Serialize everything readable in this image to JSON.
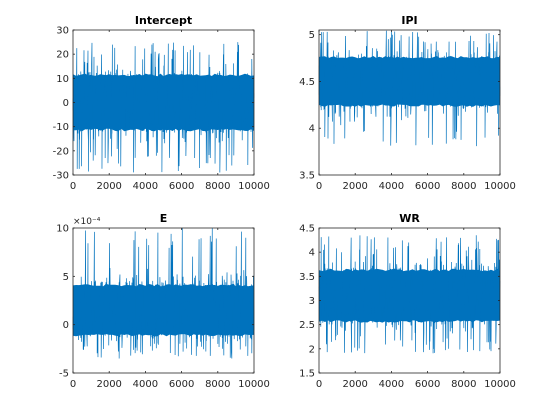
{
  "chart_data": [
    {
      "type": "line",
      "title": "Intercept",
      "xlabel": "",
      "ylabel": "",
      "xlim": [
        0,
        10000
      ],
      "ylim": [
        -30,
        30
      ],
      "xticks": [
        0,
        2000,
        4000,
        6000,
        8000,
        10000
      ],
      "xtick_labels": [
        "0",
        "2000",
        "4000",
        "6000",
        "8000",
        "10000"
      ],
      "yticks": [
        -30,
        -20,
        -10,
        0,
        10,
        20,
        30
      ],
      "ytick_labels": [
        "-30",
        "-20",
        "-10",
        "0",
        "10",
        "20",
        "30"
      ],
      "exponent_label": "",
      "color": "#0072BD",
      "series": [
        {
          "mean": 0,
          "sd": 7.5,
          "min": -29,
          "max": 25,
          "n_samples": 10000
        }
      ]
    },
    {
      "type": "line",
      "title": "IPI",
      "xlabel": "",
      "ylabel": "",
      "xlim": [
        0,
        10000
      ],
      "ylim": [
        3.5,
        5.05
      ],
      "xticks": [
        0,
        2000,
        4000,
        6000,
        8000,
        10000
      ],
      "xtick_labels": [
        "0",
        "2000",
        "4000",
        "6000",
        "8000",
        "10000"
      ],
      "yticks": [
        3.5,
        4,
        4.5,
        5
      ],
      "ytick_labels": [
        "3.5",
        "4",
        "4.5",
        "5"
      ],
      "exponent_label": "",
      "color": "#0072BD",
      "series": [
        {
          "mean": 4.5,
          "sd": 0.17,
          "min": 3.8,
          "max": 5.05,
          "n_samples": 10000
        }
      ]
    },
    {
      "type": "line",
      "title": "E",
      "xlabel": "",
      "ylabel": "",
      "xlim": [
        0,
        10000
      ],
      "ylim": [
        -5,
        10
      ],
      "xticks": [
        0,
        2000,
        4000,
        6000,
        8000,
        10000
      ],
      "xtick_labels": [
        "0",
        "2000",
        "4000",
        "6000",
        "8000",
        "10000"
      ],
      "yticks": [
        -5,
        0,
        5,
        10
      ],
      "ytick_labels": [
        "-5",
        "0",
        "5",
        "10"
      ],
      "exponent_label": "×10⁻⁴",
      "color": "#0072BD",
      "series": [
        {
          "mean": 1.5,
          "sd": 1.7,
          "min": -3.5,
          "max": 10,
          "n_samples": 10000
        }
      ]
    },
    {
      "type": "line",
      "title": "WR",
      "xlabel": "",
      "ylabel": "",
      "xlim": [
        0,
        10000
      ],
      "ylim": [
        1.5,
        4.5
      ],
      "xticks": [
        0,
        2000,
        4000,
        6000,
        8000,
        10000
      ],
      "xtick_labels": [
        "0",
        "2000",
        "4000",
        "6000",
        "8000",
        "10000"
      ],
      "yticks": [
        1.5,
        2,
        2.5,
        3,
        3.5,
        4,
        4.5
      ],
      "ytick_labels": [
        "1.5",
        "2",
        "2.5",
        "3",
        "3.5",
        "4",
        "4.5"
      ],
      "exponent_label": "",
      "color": "#0072BD",
      "series": [
        {
          "mean": 3.1,
          "sd": 0.35,
          "min": 1.9,
          "max": 4.35,
          "n_samples": 10000
        }
      ]
    }
  ]
}
